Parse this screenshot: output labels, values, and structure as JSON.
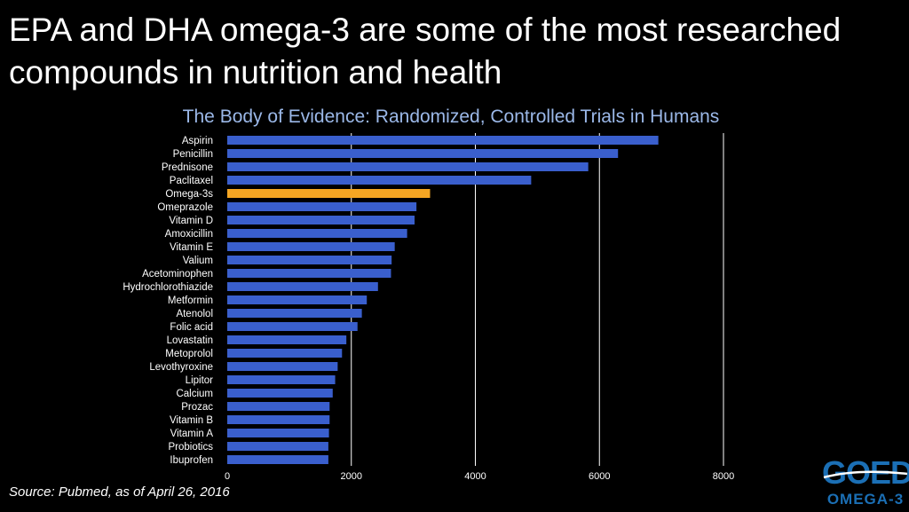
{
  "slide": {
    "headline": "EPA and DHA omega-3 are some of the most researched compounds in nutrition and health",
    "source": "Source: Pubmed, as of April 26, 2016",
    "logo": {
      "main": "GOED",
      "sub": "OMEGA-3"
    }
  },
  "colors": {
    "background": "#000000",
    "bar": "#3a5fcd",
    "highlight_bar": "#f5a623",
    "title": "#9bb8e8",
    "text": "#ffffff",
    "grid": "#ffffff",
    "logo": "#1b6fb5"
  },
  "chart_data": {
    "type": "bar",
    "orientation": "horizontal",
    "title": "The Body of Evidence: Randomized, Controlled Trials in Humans",
    "categories": [
      "Aspirin",
      "Penicillin",
      "Prednisone",
      "Paclitaxel",
      "Omega-3s",
      "Omeprazole",
      "Vitamin D",
      "Amoxicillin",
      "Vitamin E",
      "Valium",
      "Acetominophen",
      "Hydrochlorothiazide",
      "Metformin",
      "Atenolol",
      "Folic acid",
      "Lovastatin",
      "Metoprolol",
      "Levothyroxine",
      "Lipitor",
      "Calcium",
      "Prozac",
      "Vitamin B",
      "Vitamin A",
      "Probiotics",
      "Ibuprofen"
    ],
    "values": [
      6950,
      6300,
      5820,
      4900,
      3270,
      3050,
      3020,
      2900,
      2700,
      2650,
      2640,
      2430,
      2250,
      2170,
      2100,
      1920,
      1850,
      1780,
      1740,
      1700,
      1650,
      1650,
      1640,
      1630,
      1630
    ],
    "highlight": "Omega-3s",
    "xlim": [
      0,
      8000
    ],
    "xticks": [
      "0",
      "2000",
      "4000",
      "6000",
      "8000"
    ],
    "xtick_values": [
      0,
      2000,
      4000,
      6000,
      8000
    ],
    "grid": "vertical",
    "legend": "none"
  }
}
